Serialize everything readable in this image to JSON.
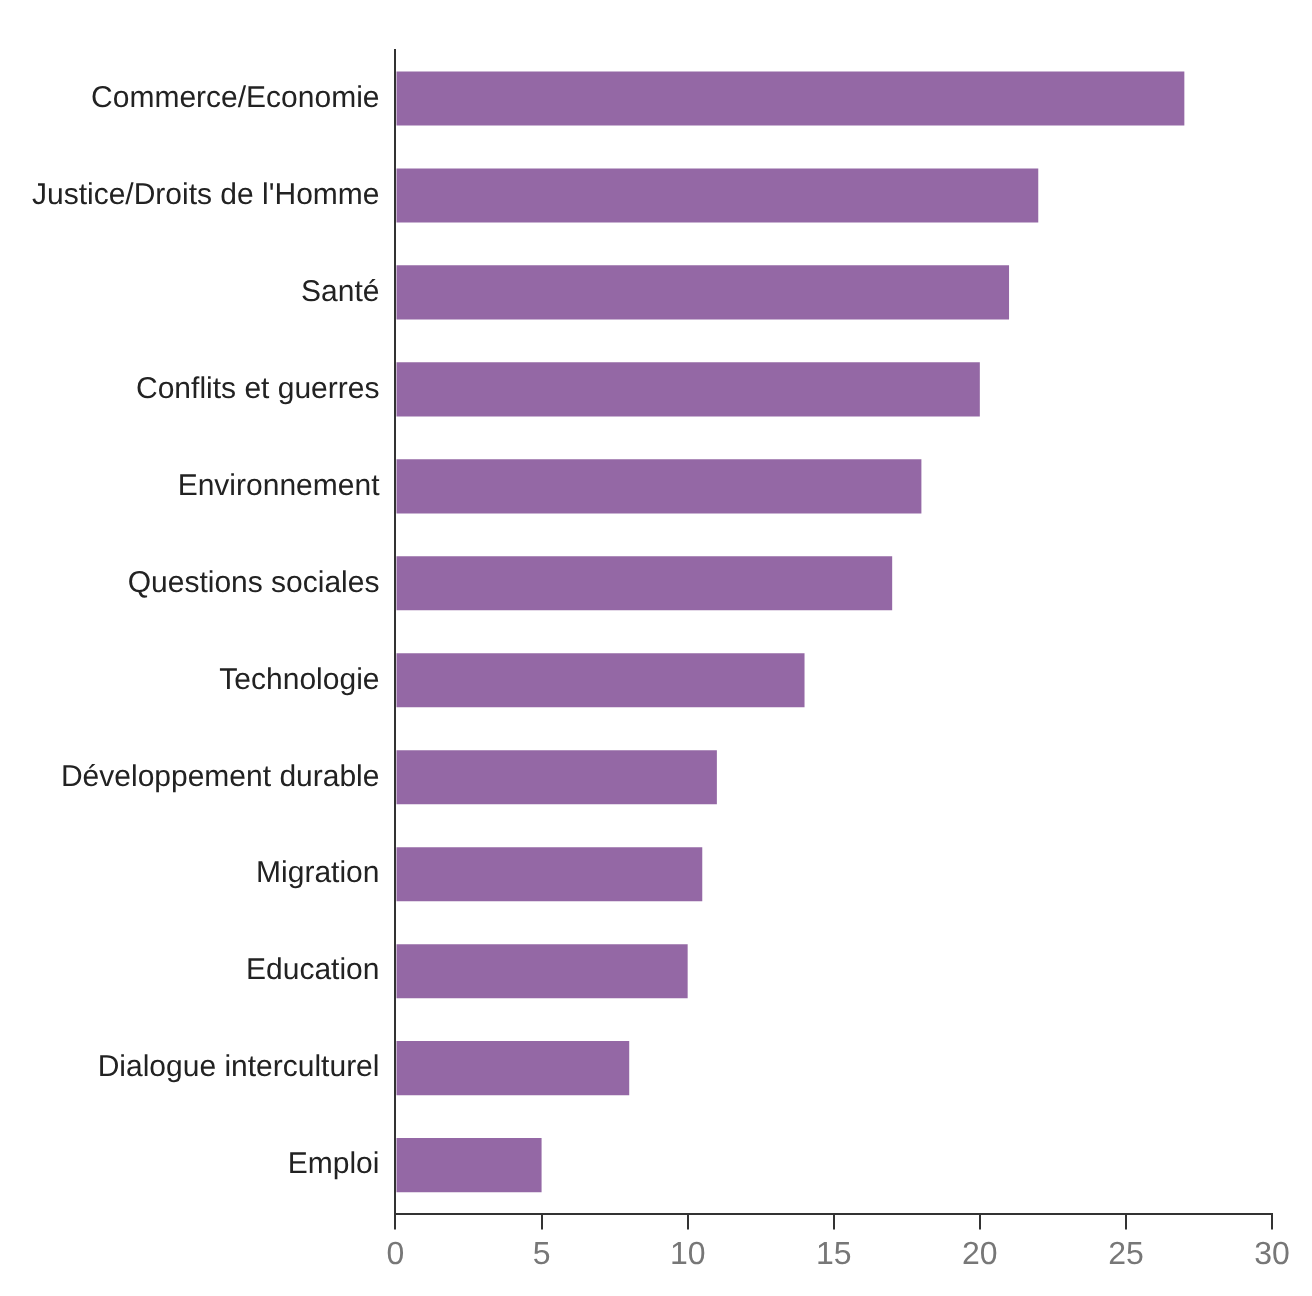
{
  "chart_data": {
    "type": "bar",
    "orientation": "horizontal",
    "categories": [
      "Commerce/Economie",
      "Justice/Droits de l'Homme",
      "Santé",
      "Conflits et guerres",
      "Environnement",
      "Questions sociales",
      "Technologie",
      "Développement durable",
      "Migration",
      "Education",
      "Dialogue interculturel",
      "Emploi"
    ],
    "values": [
      27,
      22,
      21,
      20,
      18,
      17,
      14,
      11,
      10.5,
      10,
      8,
      5
    ],
    "color": "#9468a5",
    "xlim": [
      0,
      30
    ],
    "xticks": [
      0,
      5,
      10,
      15,
      20,
      25,
      30
    ],
    "grid": false,
    "legend": false
  }
}
